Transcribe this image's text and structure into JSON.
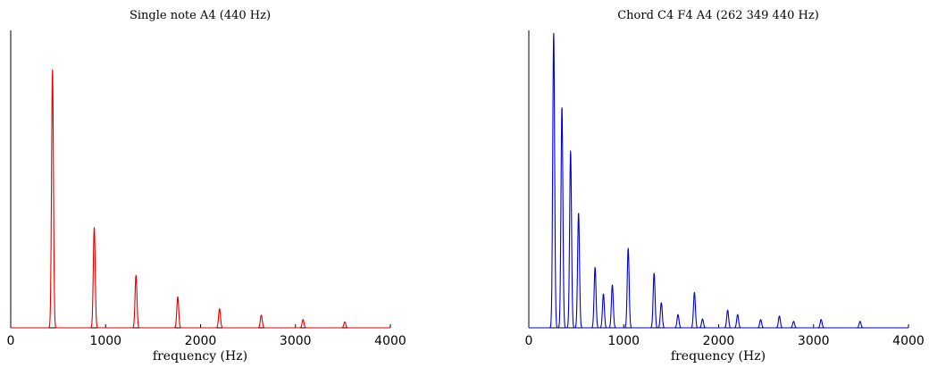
{
  "chart_data": [
    {
      "type": "line",
      "title": "Single note A4 (440 Hz)",
      "xlabel": "frequency (Hz)",
      "ylabel": "",
      "xlim": [
        0,
        4000
      ],
      "ylim": [
        0,
        1
      ],
      "xticks": [
        0,
        1000,
        2000,
        3000,
        4000
      ],
      "xtick_labels": [
        "0",
        "1000",
        "2000",
        "3000",
        "4000"
      ],
      "grid": false,
      "series": [
        {
          "color": "#e00000",
          "peak_width_hz": 10,
          "peaks": [
            {
              "freq": 440,
              "amp": 0.875
            },
            {
              "freq": 880,
              "amp": 0.34
            },
            {
              "freq": 1320,
              "amp": 0.178
            },
            {
              "freq": 1760,
              "amp": 0.105
            },
            {
              "freq": 2200,
              "amp": 0.065
            },
            {
              "freq": 2640,
              "amp": 0.043
            },
            {
              "freq": 3080,
              "amp": 0.028
            },
            {
              "freq": 3520,
              "amp": 0.02
            }
          ]
        }
      ]
    },
    {
      "type": "line",
      "title": "Chord C4 F4 A4 (262 349 440 Hz)",
      "xlabel": "frequency (Hz)",
      "ylabel": "",
      "xlim": [
        0,
        4000
      ],
      "ylim": [
        0,
        1
      ],
      "xticks": [
        0,
        1000,
        2000,
        3000,
        4000
      ],
      "xtick_labels": [
        "0",
        "1000",
        "2000",
        "3000",
        "4000"
      ],
      "grid": false,
      "series": [
        {
          "color": "#0000d0",
          "peak_width_hz": 10,
          "peaks": [
            {
              "freq": 262,
              "amp": 1.0
            },
            {
              "freq": 349,
              "amp": 0.75
            },
            {
              "freq": 440,
              "amp": 0.6
            },
            {
              "freq": 524,
              "amp": 0.39
            },
            {
              "freq": 698,
              "amp": 0.205
            },
            {
              "freq": 786,
              "amp": 0.115
            },
            {
              "freq": 880,
              "amp": 0.145
            },
            {
              "freq": 1047,
              "amp": 0.27
            },
            {
              "freq": 1320,
              "amp": 0.185
            },
            {
              "freq": 1396,
              "amp": 0.085
            },
            {
              "freq": 1572,
              "amp": 0.045
            },
            {
              "freq": 1745,
              "amp": 0.12
            },
            {
              "freq": 1830,
              "amp": 0.03
            },
            {
              "freq": 2095,
              "amp": 0.06
            },
            {
              "freq": 2200,
              "amp": 0.045
            },
            {
              "freq": 2443,
              "amp": 0.028
            },
            {
              "freq": 2640,
              "amp": 0.04
            },
            {
              "freq": 2790,
              "amp": 0.022
            },
            {
              "freq": 3080,
              "amp": 0.028
            },
            {
              "freq": 3490,
              "amp": 0.022
            }
          ]
        }
      ]
    }
  ]
}
